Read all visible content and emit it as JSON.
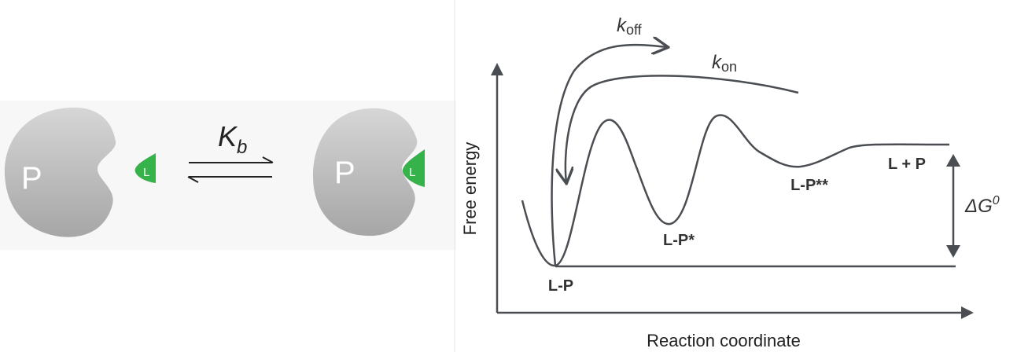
{
  "colors": {
    "protein_light": "#d4d4d4",
    "protein_dark": "#9a9a9a",
    "ligand": "#35b24a",
    "line": "#4a4d52",
    "text": "#333333",
    "panel_bg": "#f7f7f7"
  },
  "binding": {
    "protein_label": "P",
    "ligand_label": "L",
    "constant_symbol": "K",
    "constant_subscript": "b"
  },
  "energy_plot": {
    "y_axis_label": "Free energy",
    "x_axis_label": "Reaction coordinate",
    "k_off_symbol": "k",
    "k_off_subscript": "off",
    "k_on_symbol": "k",
    "k_on_subscript": "on",
    "states": [
      "L-P",
      "L-P*",
      "L-P**",
      "L + P"
    ],
    "delta_g_symbol": "ΔG",
    "delta_g_superscript": "0"
  }
}
